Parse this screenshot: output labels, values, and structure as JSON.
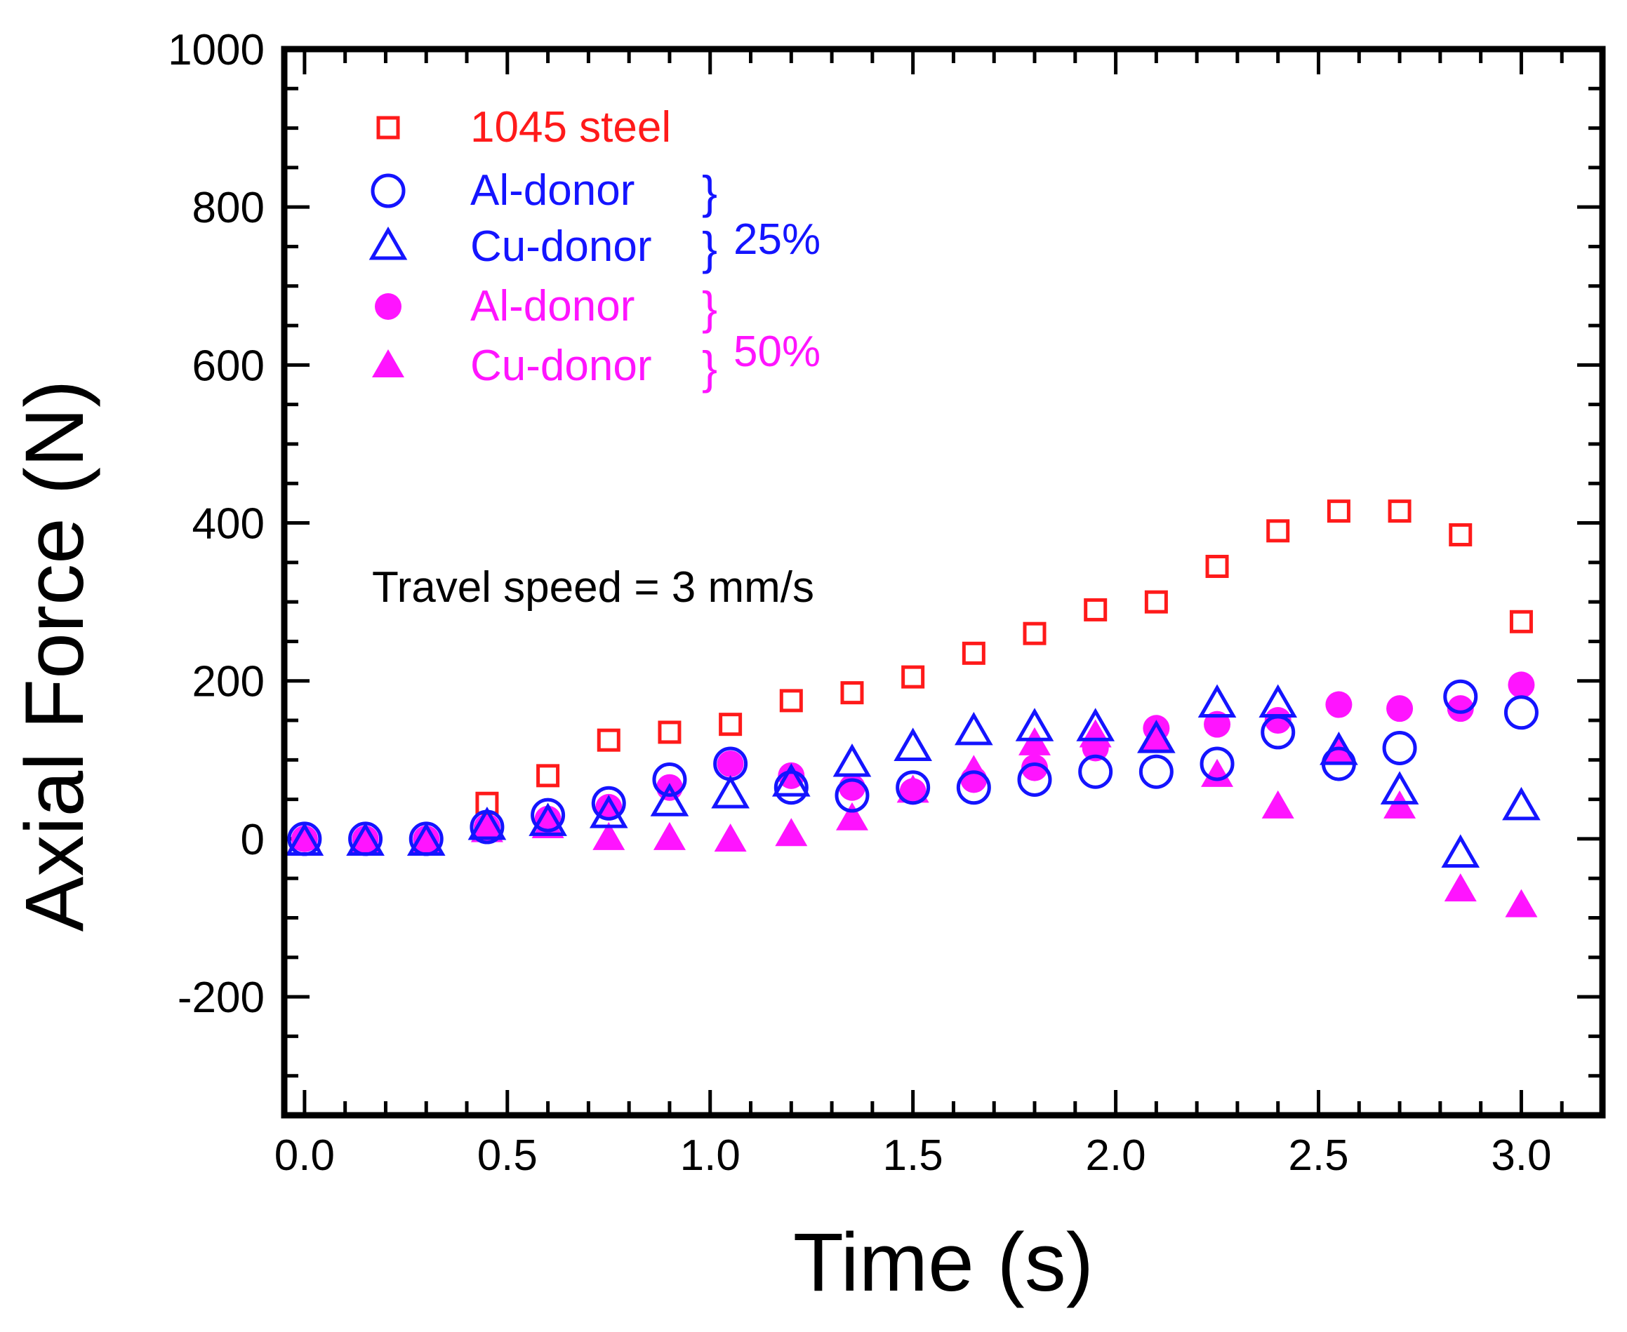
{
  "chart_data": {
    "type": "scatter",
    "xlabel": "Time (s)",
    "ylabel": "Axial Force (N)",
    "xlim": [
      -0.05,
      3.2
    ],
    "ylim": [
      -350,
      1000
    ],
    "x_ticks": [
      0.0,
      0.5,
      1.0,
      1.5,
      2.0,
      2.5,
      3.0
    ],
    "x_tick_labels": [
      "0.0",
      "0.5",
      "1.0",
      "1.5",
      "2.0",
      "2.5",
      "3.0"
    ],
    "y_ticks": [
      -200,
      0,
      200,
      400,
      600,
      800,
      1000
    ],
    "y_tick_labels": [
      "-200",
      "0",
      "200",
      "400",
      "600",
      "800",
      "1000"
    ],
    "annotation": "Travel speed = 3 mm/s",
    "groups": [
      {
        "label": "25%",
        "color": "#1414ff"
      },
      {
        "label": "50%",
        "color": "#ff14ff"
      }
    ],
    "series": [
      {
        "name": "1045 steel",
        "marker": "square-open",
        "color": "#ff1a1a",
        "x": [
          0.45,
          0.6,
          0.75,
          0.9,
          1.05,
          1.2,
          1.35,
          1.5,
          1.65,
          1.8,
          1.95,
          2.1,
          2.25,
          2.4,
          2.55,
          2.7,
          2.85,
          3.0
        ],
        "y": [
          45,
          80,
          125,
          135,
          145,
          175,
          185,
          205,
          235,
          260,
          290,
          300,
          345,
          390,
          415,
          415,
          385,
          275
        ]
      },
      {
        "name": "Al-donor",
        "group": "25%",
        "marker": "circle-open",
        "color": "#1414ff",
        "x": [
          0.0,
          0.15,
          0.3,
          0.45,
          0.6,
          0.75,
          0.9,
          1.05,
          1.2,
          1.35,
          1.5,
          1.65,
          1.8,
          1.95,
          2.1,
          2.25,
          2.4,
          2.55,
          2.7,
          2.85,
          3.0
        ],
        "y": [
          0,
          0,
          0,
          15,
          30,
          45,
          75,
          95,
          65,
          55,
          65,
          65,
          75,
          85,
          85,
          95,
          135,
          95,
          115,
          180,
          160
        ]
      },
      {
        "name": "Cu-donor",
        "group": "25%",
        "marker": "triangle-open",
        "color": "#1414ff",
        "x": [
          0.0,
          0.15,
          0.3,
          0.45,
          0.6,
          0.75,
          0.9,
          1.05,
          1.2,
          1.35,
          1.5,
          1.65,
          1.8,
          1.95,
          2.1,
          2.25,
          2.4,
          2.55,
          2.7,
          2.85,
          3.0
        ],
        "y": [
          -5,
          -5,
          -5,
          15,
          20,
          30,
          45,
          55,
          70,
          95,
          115,
          135,
          140,
          140,
          125,
          170,
          170,
          110,
          60,
          -20,
          40
        ]
      },
      {
        "name": "Al-donor",
        "group": "50%",
        "marker": "circle-filled",
        "color": "#ff14ff",
        "x": [
          0.0,
          0.15,
          0.3,
          0.45,
          0.6,
          0.75,
          0.9,
          1.05,
          1.2,
          1.35,
          1.5,
          1.65,
          1.8,
          1.95,
          2.1,
          2.25,
          2.4,
          2.55,
          2.7,
          2.85,
          3.0
        ],
        "y": [
          0,
          0,
          0,
          15,
          25,
          40,
          65,
          95,
          80,
          65,
          60,
          75,
          90,
          115,
          140,
          145,
          150,
          170,
          165,
          165,
          195
        ]
      },
      {
        "name": "Cu-donor",
        "group": "50%",
        "marker": "triangle-filled",
        "color": "#ff14ff",
        "x": [
          0.0,
          0.15,
          0.3,
          0.45,
          0.6,
          0.75,
          0.9,
          1.05,
          1.2,
          1.35,
          1.5,
          1.65,
          1.8,
          1.95,
          2.1,
          2.25,
          2.4,
          2.55,
          2.7,
          2.85,
          3.0
        ],
        "y": [
          0,
          -5,
          -5,
          10,
          15,
          0,
          0,
          -2,
          5,
          25,
          60,
          85,
          120,
          130,
          125,
          80,
          40,
          110,
          40,
          -65,
          -85
        ]
      }
    ]
  }
}
